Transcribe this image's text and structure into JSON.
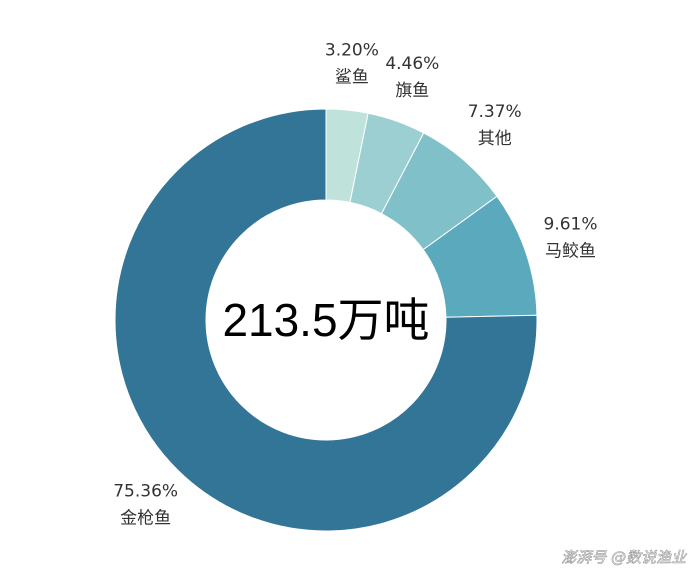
{
  "chart_data": {
    "type": "donut",
    "categories": [
      "鲨鱼",
      "旗鱼",
      "其他",
      "马鲛鱼",
      "金枪鱼"
    ],
    "values": [
      3.2,
      4.46,
      7.37,
      9.61,
      75.36
    ],
    "value_labels": [
      "3.20%",
      "4.46%",
      "7.37%",
      "9.61%",
      "75.36%"
    ],
    "colors": [
      "#bfe3da",
      "#9bcfd1",
      "#7fc0c9",
      "#5aa9bd",
      "#327597"
    ],
    "center_text": "213.5万吨",
    "watermark": "澎湃号 @数说渔业"
  }
}
